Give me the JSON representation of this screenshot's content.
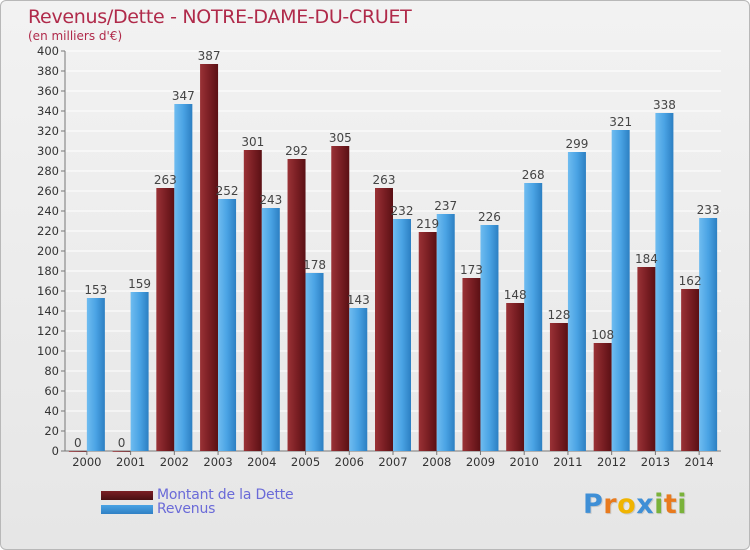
{
  "title": "Revenus/Dette - NOTRE-DAME-DU-CRUET",
  "subtitle": "(en milliers d'€)",
  "logo": {
    "letters": [
      {
        "ch": "P",
        "color": "#3f8fd6"
      },
      {
        "ch": "r",
        "color": "#e87a1e"
      },
      {
        "ch": "o",
        "color": "#f0b400"
      },
      {
        "ch": "x",
        "color": "#3f8fd6"
      },
      {
        "ch": "i",
        "color": "#7ab23a"
      },
      {
        "ch": "t",
        "color": "#e87a1e"
      },
      {
        "ch": "i",
        "color": "#7ab23a"
      }
    ]
  },
  "colors": {
    "dette": "#7b1f24",
    "revenus": "#4aa3e4",
    "axis_text": "#333333",
    "label_text": "#444444"
  },
  "chart_data": {
    "type": "bar",
    "title": "Revenus/Dette - NOTRE-DAME-DU-CRUET",
    "subtitle": "(en milliers d'€)",
    "categories": [
      "2000",
      "2001",
      "2002",
      "2003",
      "2004",
      "2005",
      "2006",
      "2007",
      "2008",
      "2009",
      "2010",
      "2011",
      "2012",
      "2013",
      "2014"
    ],
    "series": [
      {
        "name": "Montant de la Dette",
        "values": [
          0,
          0,
          263,
          387,
          301,
          292,
          305,
          263,
          219,
          173,
          148,
          128,
          108,
          184,
          162
        ]
      },
      {
        "name": "Revenus",
        "values": [
          153,
          159,
          347,
          252,
          243,
          178,
          143,
          232,
          237,
          226,
          268,
          299,
          321,
          338,
          233
        ]
      }
    ],
    "ylim": [
      0,
      400
    ],
    "yticks": [
      0,
      20,
      40,
      60,
      80,
      100,
      120,
      140,
      160,
      180,
      200,
      220,
      240,
      260,
      280,
      300,
      320,
      340,
      360,
      380,
      400
    ],
    "grid": true,
    "legend": "bottom-left"
  }
}
